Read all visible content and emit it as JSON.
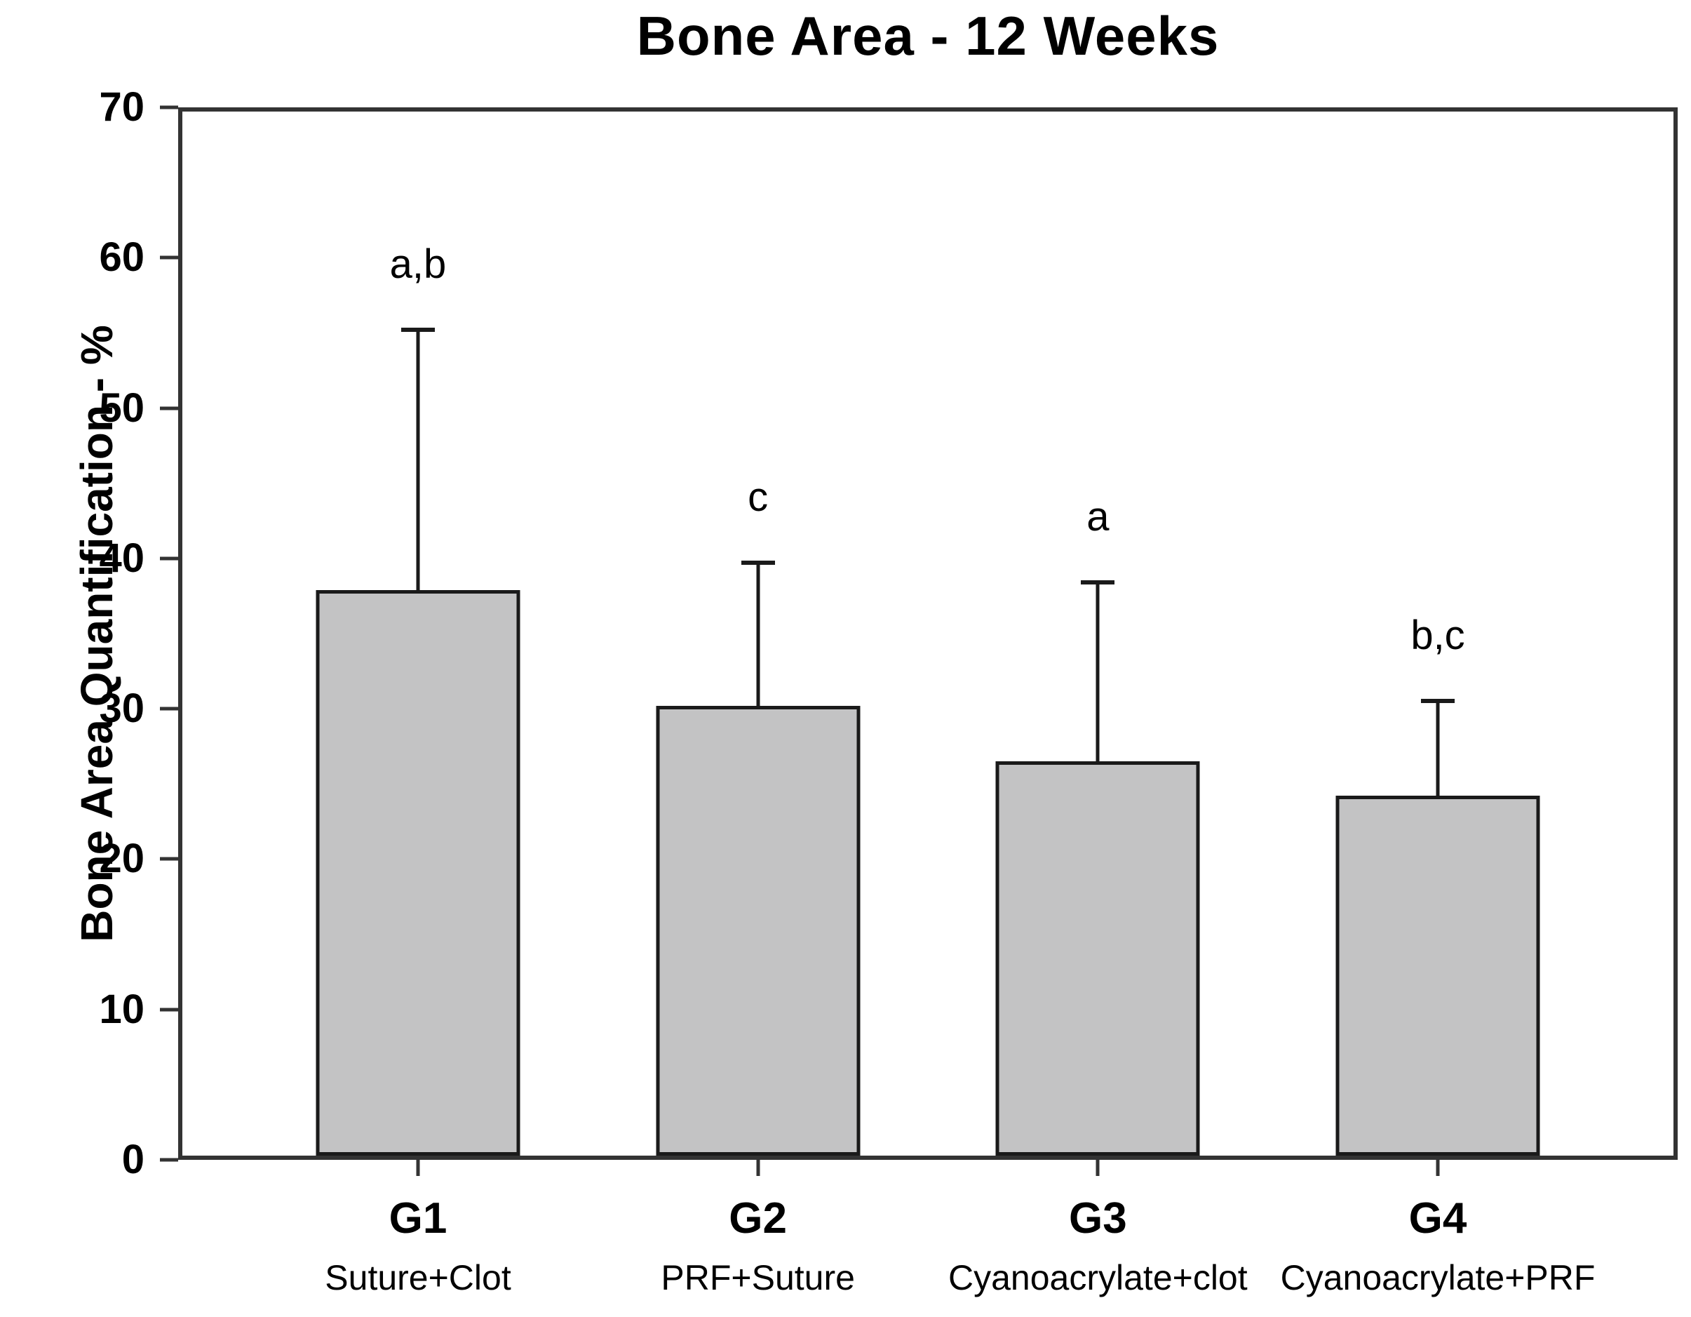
{
  "chart_data": {
    "type": "bar",
    "title": "Bone Area - 12 Weeks",
    "ylabel": "Bone Area Quantification - %",
    "xlabel": "",
    "ylim": [
      0,
      70
    ],
    "yticks": [
      0,
      10,
      20,
      30,
      40,
      50,
      60,
      70
    ],
    "grid": false,
    "legend": "none",
    "bar_fill_color": "#c3c3c4",
    "bar_border_color": "#1a1a1a",
    "axis_color": "#333333",
    "text_color": "#000000",
    "categories": [
      "G1",
      "G2",
      "G3",
      "G4"
    ],
    "groups": [
      {
        "category": "G1",
        "sublabel": "Suture+Clot",
        "value": 37.9,
        "error_plus": 17.3,
        "error_top": 55.2,
        "sig": "a,b"
      },
      {
        "category": "G2",
        "sublabel": "PRF+Suture",
        "value": 30.2,
        "error_plus": 9.5,
        "error_top": 39.7,
        "sig": "c"
      },
      {
        "category": "G3",
        "sublabel": "Cyanoacrylate+clot",
        "value": 26.5,
        "error_plus": 11.9,
        "error_top": 38.4,
        "sig": "a"
      },
      {
        "category": "G4",
        "sublabel": "Cyanoacrylate+PRF",
        "value": 24.2,
        "error_plus": 6.3,
        "error_top": 30.5,
        "sig": "b,c"
      }
    ]
  }
}
